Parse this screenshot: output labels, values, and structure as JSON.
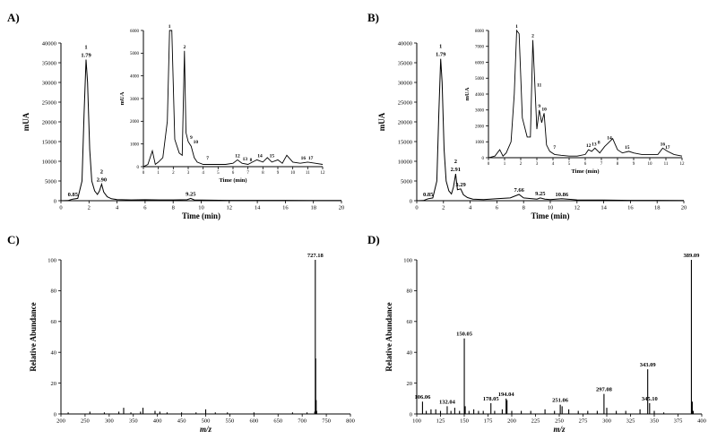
{
  "panels": [
    {
      "label": "A)"
    },
    {
      "label": "B)"
    },
    {
      "label": "C)"
    },
    {
      "label": "D)"
    }
  ],
  "chart_data": [
    {
      "id": "A",
      "type": "line",
      "xlabel": "Time (min)",
      "ylabel": "mUA",
      "xlim": [
        0,
        20
      ],
      "ylim": [
        0,
        40000
      ],
      "xticks": [
        0,
        2,
        4,
        6,
        8,
        10,
        12,
        14,
        16,
        18,
        20
      ],
      "yticks": [
        0,
        5000,
        10000,
        15000,
        20000,
        25000,
        30000,
        35000,
        40000
      ],
      "series": [
        {
          "x": [
            0,
            0.5,
            0.85,
            1.2,
            1.5,
            1.65,
            1.79,
            1.9,
            2.05,
            2.2,
            2.4,
            2.6,
            2.75,
            2.9,
            3.05,
            3.3,
            3.6,
            4.0,
            5,
            6,
            7,
            8,
            9,
            9.25,
            9.5,
            10,
            12,
            14,
            16,
            18,
            20
          ],
          "y": [
            0,
            50,
            400,
            600,
            5000,
            22000,
            35800,
            30000,
            13000,
            5000,
            2500,
            1600,
            2500,
            4200,
            2200,
            1000,
            500,
            300,
            200,
            250,
            200,
            200,
            250,
            600,
            200,
            150,
            100,
            100,
            80,
            60,
            50
          ]
        }
      ],
      "annotations": [
        {
          "x": 1.79,
          "y": 35800,
          "text": "1",
          "line2": "1.79"
        },
        {
          "x": 2.9,
          "y": 4200,
          "text": "2",
          "line2": "2.90"
        },
        {
          "x": 0.85,
          "y": 400,
          "text": "0.85"
        },
        {
          "x": 9.25,
          "y": 600,
          "text": "9.25"
        }
      ],
      "inset": {
        "xlabel": "Time (min)",
        "ylabel": "mUA",
        "xlim": [
          0,
          12
        ],
        "ylim": [
          0,
          6000
        ],
        "xticks": [
          0,
          1,
          2,
          3,
          4,
          5,
          6,
          7,
          8,
          9,
          10,
          11,
          12
        ],
        "yticks": [
          0,
          1000,
          2000,
          3000,
          4000,
          5000,
          6000
        ],
        "series": [
          {
            "x": [
              0,
              0.3,
              0.6,
              0.8,
              1.0,
              1.3,
              1.6,
              1.75,
              1.9,
              2.1,
              2.4,
              2.6,
              2.75,
              2.85,
              3.0,
              3.2,
              3.4,
              3.6,
              4,
              4.5,
              5,
              5.5,
              6,
              6.3,
              6.6,
              7.0,
              7.3,
              7.6,
              8.0,
              8.3,
              8.6,
              9.0,
              9.3,
              9.6,
              10,
              10.5,
              11,
              11.5,
              12
            ],
            "y": [
              0,
              100,
              700,
              100,
              200,
              400,
              2000,
              6000,
              6000,
              1200,
              600,
              500,
              5100,
              1500,
              1100,
              900,
              400,
              200,
              100,
              100,
              100,
              100,
              150,
              300,
              150,
              100,
              200,
              300,
              200,
              400,
              200,
              300,
              150,
              500,
              200,
              150,
              200,
              150,
              100
            ]
          }
        ],
        "annotations": [
          {
            "x": 1.75,
            "y": 6000,
            "text": "1"
          },
          {
            "x": 2.75,
            "y": 5100,
            "text": "2"
          },
          {
            "x": 3.2,
            "y": 1100,
            "text": "9"
          },
          {
            "x": 3.5,
            "y": 900,
            "text": "10"
          },
          {
            "x": 4.3,
            "y": 200,
            "text": "7"
          },
          {
            "x": 6.3,
            "y": 300,
            "text": "12"
          },
          {
            "x": 6.8,
            "y": 150,
            "text": "13"
          },
          {
            "x": 7.2,
            "y": 120,
            "text": "8"
          },
          {
            "x": 7.8,
            "y": 300,
            "text": "14"
          },
          {
            "x": 8.6,
            "y": 300,
            "text": "15"
          },
          {
            "x": 10.7,
            "y": 200,
            "text": "16"
          },
          {
            "x": 11.2,
            "y": 200,
            "text": "17"
          }
        ]
      }
    },
    {
      "id": "B",
      "type": "line",
      "xlabel": "Time (min)",
      "ylabel": "mUA",
      "xlim": [
        0,
        20
      ],
      "ylim": [
        0,
        40000
      ],
      "xticks": [
        0,
        2,
        4,
        6,
        8,
        10,
        12,
        14,
        16,
        18,
        20
      ],
      "yticks": [
        0,
        5000,
        10000,
        15000,
        20000,
        25000,
        30000,
        35000,
        40000
      ],
      "series": [
        {
          "x": [
            0,
            0.5,
            0.85,
            1.2,
            1.5,
            1.65,
            1.79,
            1.9,
            2.05,
            2.2,
            2.4,
            2.6,
            2.75,
            2.91,
            3.05,
            3.29,
            3.5,
            3.8,
            4.2,
            5,
            6,
            7,
            7.66,
            8,
            9,
            9.25,
            9.6,
            10,
            10.86,
            12,
            14,
            16,
            18,
            20
          ],
          "y": [
            0,
            50,
            500,
            700,
            5000,
            22000,
            36000,
            30000,
            13000,
            5000,
            2500,
            1700,
            3500,
            6800,
            2800,
            3000,
            1500,
            800,
            400,
            300,
            500,
            700,
            1600,
            700,
            400,
            700,
            400,
            300,
            500,
            200,
            150,
            100,
            80,
            50
          ]
        }
      ],
      "annotations": [
        {
          "x": 1.79,
          "y": 36000,
          "text": "1",
          "line2": "1.79"
        },
        {
          "x": 2.91,
          "y": 6800,
          "text": "2",
          "line2": "2.91"
        },
        {
          "x": 3.29,
          "y": 3000,
          "text": "3.29"
        },
        {
          "x": 0.85,
          "y": 500,
          "text": "0.85"
        },
        {
          "x": 7.66,
          "y": 1600,
          "text": "7.66"
        },
        {
          "x": 9.25,
          "y": 700,
          "text": "9.25"
        },
        {
          "x": 10.86,
          "y": 500,
          "text": "10.86"
        }
      ],
      "inset": {
        "xlabel": "Time (min)",
        "ylabel": "mUA",
        "xlim": [
          0,
          12
        ],
        "ylim": [
          0,
          8000
        ],
        "xticks": [
          0,
          1,
          2,
          3,
          4,
          5,
          6,
          7,
          8,
          9,
          10,
          11,
          12
        ],
        "yticks": [
          0,
          1000,
          2000,
          3000,
          4000,
          5000,
          6000,
          7000,
          8000
        ],
        "series": [
          {
            "x": [
              0,
              0.4,
              0.7,
              0.9,
              1.1,
              1.4,
              1.6,
              1.75,
              1.9,
              2.1,
              2.4,
              2.6,
              2.75,
              2.85,
              3.0,
              3.15,
              3.3,
              3.45,
              3.6,
              3.8,
              4.1,
              4.5,
              5,
              5.5,
              6,
              6.2,
              6.4,
              6.6,
              6.9,
              7.2,
              7.5,
              7.7,
              8,
              8.3,
              8.7,
              9,
              9.5,
              10,
              10.5,
              10.8,
              11.1,
              11.5,
              12
            ],
            "y": [
              0,
              100,
              500,
              100,
              300,
              1000,
              4000,
              8000,
              7800,
              2500,
              1300,
              1300,
              7400,
              5200,
              1800,
              3000,
              2200,
              2800,
              800,
              400,
              200,
              150,
              100,
              100,
              200,
              500,
              400,
              600,
              300,
              700,
              1000,
              1200,
              500,
              300,
              400,
              300,
              200,
              200,
              200,
              600,
              400,
              200,
              100
            ]
          }
        ],
        "annotations": [
          {
            "x": 1.75,
            "y": 8000,
            "text": "1"
          },
          {
            "x": 2.75,
            "y": 7400,
            "text": "2"
          },
          {
            "x": 3.15,
            "y": 4300,
            "text": "11"
          },
          {
            "x": 3.15,
            "y": 3000,
            "text": "9"
          },
          {
            "x": 3.45,
            "y": 2800,
            "text": "10"
          },
          {
            "x": 4.1,
            "y": 400,
            "text": "7"
          },
          {
            "x": 6.2,
            "y": 500,
            "text": "12"
          },
          {
            "x": 6.55,
            "y": 600,
            "text": "13"
          },
          {
            "x": 6.85,
            "y": 700,
            "text": "8"
          },
          {
            "x": 7.5,
            "y": 1000,
            "text": "14"
          },
          {
            "x": 8.6,
            "y": 400,
            "text": "15"
          },
          {
            "x": 10.8,
            "y": 600,
            "text": "16"
          },
          {
            "x": 11.1,
            "y": 400,
            "text": "17"
          }
        ]
      }
    },
    {
      "id": "C",
      "type": "bar",
      "xlabel": "m/z",
      "ylabel": "Relative Abundance",
      "xlim": [
        200,
        800
      ],
      "ylim": [
        0,
        100
      ],
      "xticks": [
        200,
        250,
        300,
        350,
        400,
        450,
        500,
        550,
        600,
        650,
        700,
        750,
        800
      ],
      "yticks": [
        0,
        20,
        40,
        60,
        80,
        100
      ],
      "peaks": [
        {
          "x": 215,
          "y": 1
        },
        {
          "x": 260,
          "y": 1.5
        },
        {
          "x": 290,
          "y": 1
        },
        {
          "x": 320,
          "y": 1.5
        },
        {
          "x": 330,
          "y": 4
        },
        {
          "x": 345,
          "y": 1
        },
        {
          "x": 365,
          "y": 1.5
        },
        {
          "x": 370,
          "y": 4
        },
        {
          "x": 395,
          "y": 2
        },
        {
          "x": 405,
          "y": 1.5
        },
        {
          "x": 420,
          "y": 1
        },
        {
          "x": 450,
          "y": 1
        },
        {
          "x": 480,
          "y": 1
        },
        {
          "x": 500,
          "y": 3
        },
        {
          "x": 520,
          "y": 1
        },
        {
          "x": 545,
          "y": 1
        },
        {
          "x": 600,
          "y": 1
        },
        {
          "x": 680,
          "y": 1
        },
        {
          "x": 710,
          "y": 1
        },
        {
          "x": 726,
          "y": 1.5
        },
        {
          "x": 727.18,
          "y": 100
        },
        {
          "x": 728,
          "y": 36
        },
        {
          "x": 729,
          "y": 9
        },
        {
          "x": 730,
          "y": 2
        }
      ],
      "annotations": [
        {
          "x": 727.18,
          "y": 100,
          "text": "727.18"
        }
      ]
    },
    {
      "id": "D",
      "type": "bar",
      "xlabel": "m/z",
      "ylabel": "Relative Abundance",
      "xlim": [
        100,
        400
      ],
      "ylim": [
        0,
        100
      ],
      "xticks": [
        100,
        125,
        150,
        175,
        200,
        225,
        250,
        275,
        300,
        325,
        350,
        375,
        400
      ],
      "yticks": [
        0,
        20,
        40,
        60,
        80,
        100
      ],
      "peaks": [
        {
          "x": 106.06,
          "y": 8
        },
        {
          "x": 110,
          "y": 2
        },
        {
          "x": 115,
          "y": 3
        },
        {
          "x": 120,
          "y": 3
        },
        {
          "x": 125,
          "y": 2
        },
        {
          "x": 132.04,
          "y": 5
        },
        {
          "x": 136,
          "y": 2
        },
        {
          "x": 140,
          "y": 4
        },
        {
          "x": 145,
          "y": 2
        },
        {
          "x": 150.05,
          "y": 49
        },
        {
          "x": 151,
          "y": 5
        },
        {
          "x": 155,
          "y": 2
        },
        {
          "x": 160,
          "y": 3
        },
        {
          "x": 165,
          "y": 2
        },
        {
          "x": 170,
          "y": 2
        },
        {
          "x": 178.05,
          "y": 7
        },
        {
          "x": 182,
          "y": 2
        },
        {
          "x": 190,
          "y": 3
        },
        {
          "x": 194.04,
          "y": 10
        },
        {
          "x": 195,
          "y": 9
        },
        {
          "x": 200,
          "y": 2
        },
        {
          "x": 210,
          "y": 2
        },
        {
          "x": 220,
          "y": 2
        },
        {
          "x": 235,
          "y": 3
        },
        {
          "x": 245,
          "y": 2
        },
        {
          "x": 251.06,
          "y": 6
        },
        {
          "x": 253,
          "y": 5
        },
        {
          "x": 260,
          "y": 3
        },
        {
          "x": 270,
          "y": 2
        },
        {
          "x": 280,
          "y": 2
        },
        {
          "x": 290,
          "y": 2
        },
        {
          "x": 297.08,
          "y": 13
        },
        {
          "x": 300,
          "y": 4
        },
        {
          "x": 310,
          "y": 2
        },
        {
          "x": 320,
          "y": 2
        },
        {
          "x": 335,
          "y": 3
        },
        {
          "x": 343.09,
          "y": 29
        },
        {
          "x": 345.1,
          "y": 7
        },
        {
          "x": 350,
          "y": 2
        },
        {
          "x": 360,
          "y": 1
        },
        {
          "x": 389.09,
          "y": 100
        },
        {
          "x": 390,
          "y": 8
        },
        {
          "x": 391,
          "y": 2
        }
      ],
      "annotations": [
        {
          "x": 106.06,
          "y": 8,
          "text": "106.06"
        },
        {
          "x": 132.04,
          "y": 5,
          "text": "132.04"
        },
        {
          "x": 150.05,
          "y": 49,
          "text": "150.05"
        },
        {
          "x": 178.05,
          "y": 7,
          "text": "178.05"
        },
        {
          "x": 194.04,
          "y": 10,
          "text": "194.04"
        },
        {
          "x": 251.06,
          "y": 6,
          "text": "251.06"
        },
        {
          "x": 297.08,
          "y": 13,
          "text": "297.08"
        },
        {
          "x": 343.09,
          "y": 29,
          "text": "343.09"
        },
        {
          "x": 345.1,
          "y": 7,
          "text": "345.10"
        },
        {
          "x": 389.09,
          "y": 100,
          "text": "389.09"
        }
      ]
    }
  ]
}
